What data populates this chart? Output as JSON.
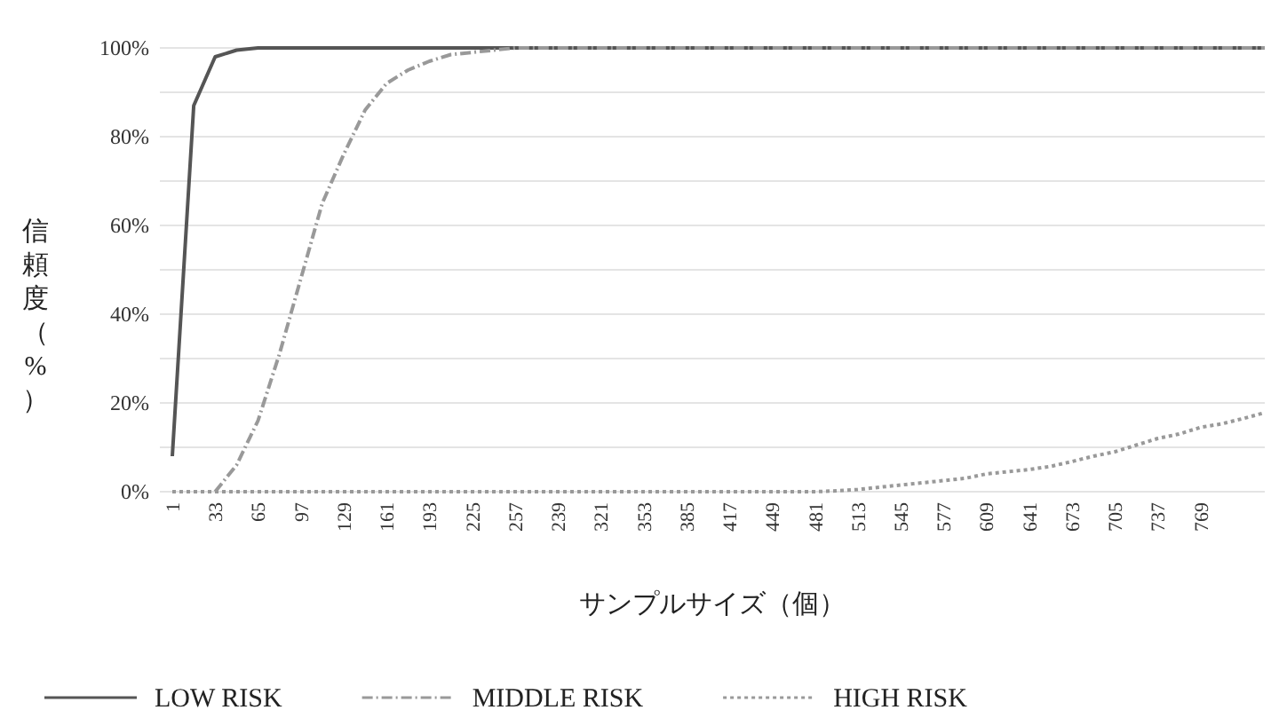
{
  "chart_data": {
    "type": "line",
    "xlabel": "サンプルサイズ（個）",
    "ylabel": "信頼度（%）",
    "categories": [
      "1",
      null,
      "33",
      null,
      "65",
      null,
      "97",
      null,
      "129",
      null,
      "161",
      null,
      "193",
      null,
      "225",
      null,
      "257",
      null,
      "239",
      null,
      "321",
      null,
      "353",
      null,
      "385",
      null,
      "417",
      null,
      "449",
      null,
      "481",
      null,
      "513",
      null,
      "545",
      null,
      "577",
      null,
      "609",
      null,
      "641",
      null,
      "673",
      null,
      "705",
      null,
      "737",
      null,
      "769",
      null,
      null,
      null
    ],
    "series": [
      {
        "name": "LOW RISK",
        "color": "#555555",
        "line_style": "solid",
        "values": [
          8,
          87,
          98,
          99.5,
          100,
          100,
          100,
          100,
          100,
          100,
          100,
          100,
          100,
          100,
          100,
          100,
          100,
          100,
          100,
          100,
          100,
          100,
          100,
          100,
          100,
          100,
          100,
          100,
          100,
          100,
          100,
          100,
          100,
          100,
          100,
          100,
          100,
          100,
          100,
          100,
          100,
          100,
          100,
          100,
          100,
          100,
          100,
          100,
          100,
          100,
          100,
          100
        ]
      },
      {
        "name": "MIDDLE RISK",
        "color": "#999999",
        "line_style": "dashdot",
        "values": [
          null,
          null,
          0,
          6,
          16,
          31,
          48,
          65,
          76,
          86,
          92,
          95,
          97,
          98.5,
          99,
          99.5,
          100,
          100,
          100,
          100,
          100,
          100,
          100,
          100,
          100,
          100,
          100,
          100,
          100,
          100,
          100,
          100,
          100,
          100,
          100,
          100,
          100,
          100,
          100,
          100,
          100,
          100,
          100,
          100,
          100,
          100,
          100,
          100,
          100,
          100,
          100,
          100
        ]
      },
      {
        "name": "HIGH RISK",
        "color": "#999999",
        "line_style": "dotted",
        "values": [
          0,
          0,
          0,
          0,
          0,
          0,
          0,
          0,
          0,
          0,
          0,
          0,
          0,
          0,
          0,
          0,
          0,
          0,
          0,
          0,
          0,
          0,
          0,
          0,
          0,
          0,
          0,
          0,
          0,
          0,
          0,
          0.2,
          0.5,
          1,
          1.5,
          2,
          2.5,
          3,
          4,
          4.5,
          5,
          5.7,
          6.8,
          8,
          9,
          10.5,
          12,
          13,
          14.5,
          15.3,
          16.5,
          17.8
        ]
      }
    ],
    "ylim": [
      0,
      100
    ],
    "yticks": [
      {
        "value": 0,
        "label": "0%"
      },
      {
        "value": 10,
        "label": null
      },
      {
        "value": 20,
        "label": "20%"
      },
      {
        "value": 30,
        "label": null
      },
      {
        "value": 40,
        "label": "40%"
      },
      {
        "value": 50,
        "label": null
      },
      {
        "value": 60,
        "label": "60%"
      },
      {
        "value": 70,
        "label": null
      },
      {
        "value": 80,
        "label": "80%"
      },
      {
        "value": 90,
        "label": null
      },
      {
        "value": 100,
        "label": "100%"
      }
    ],
    "grid": "y",
    "legend": "bottom"
  }
}
